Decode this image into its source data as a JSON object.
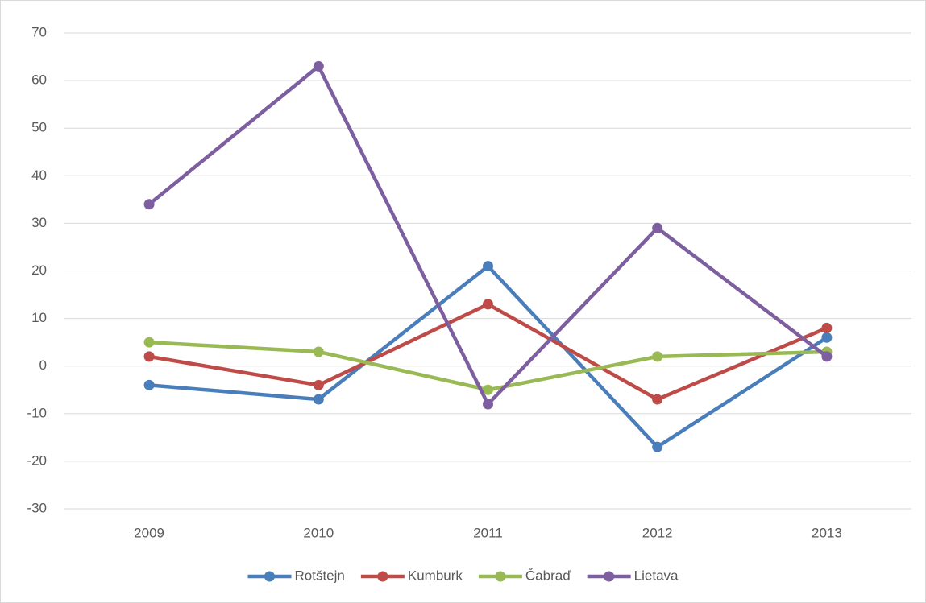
{
  "chart_data": {
    "type": "line",
    "categories": [
      "2009",
      "2010",
      "2011",
      "2012",
      "2013"
    ],
    "series": [
      {
        "name": "Rotštejn",
        "color": "#4a7ebb",
        "values": [
          -4,
          -7,
          21,
          -17,
          6
        ]
      },
      {
        "name": "Kumburk",
        "color": "#be4b48",
        "values": [
          2,
          -4,
          13,
          -7,
          8
        ]
      },
      {
        "name": "Čabraď",
        "color": "#98b954",
        "values": [
          5,
          3,
          -5,
          2,
          3
        ]
      },
      {
        "name": "Lietava",
        "color": "#7d5fa0",
        "values": [
          34,
          63,
          -8,
          29,
          2
        ]
      }
    ],
    "ylim": [
      -30,
      70
    ],
    "yticks": [
      -30,
      -20,
      -10,
      0,
      10,
      20,
      30,
      40,
      50,
      60,
      70
    ],
    "grid": true,
    "legend": "bottom"
  }
}
